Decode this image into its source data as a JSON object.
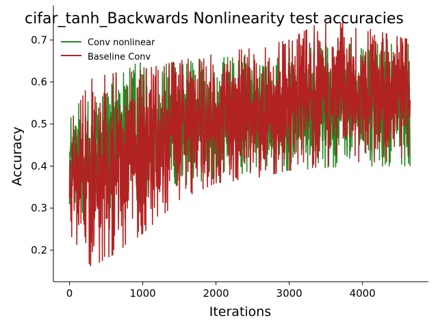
{
  "chart_data": {
    "type": "line",
    "title": "cifar_tanh_Backwards Nonlinearity test accuracies",
    "xlabel": "Iterations",
    "ylabel": "Accuracy",
    "xlim": [
      -220,
      4900
    ],
    "ylim": [
      0.125,
      0.782
    ],
    "x_ticks": [
      0,
      1000,
      2000,
      3000,
      4000
    ],
    "y_ticks": [
      0.2,
      0.3,
      0.4,
      0.5,
      0.6,
      0.7
    ],
    "x_tick_labels": [
      "0",
      "1000",
      "2000",
      "3000",
      "4000"
    ],
    "y_tick_labels": [
      "0.2",
      "0.3",
      "0.4",
      "0.5",
      "0.6",
      "0.7"
    ],
    "grid": false,
    "legend_position": "upper-left",
    "series": [
      {
        "name": "Conv nonlinear",
        "color": "#228B22",
        "x_start": 0,
        "x_end": 4650,
        "envelope": [
          {
            "x": 0,
            "lo": 0.3,
            "hi": 0.53
          },
          {
            "x": 200,
            "lo": 0.27,
            "hi": 0.56
          },
          {
            "x": 500,
            "lo": 0.28,
            "hi": 0.6
          },
          {
            "x": 800,
            "lo": 0.31,
            "hi": 0.65
          },
          {
            "x": 1200,
            "lo": 0.34,
            "hi": 0.64
          },
          {
            "x": 1700,
            "lo": 0.36,
            "hi": 0.65
          },
          {
            "x": 2200,
            "lo": 0.38,
            "hi": 0.66
          },
          {
            "x": 3000,
            "lo": 0.39,
            "hi": 0.68
          },
          {
            "x": 3800,
            "lo": 0.4,
            "hi": 0.69
          },
          {
            "x": 4650,
            "lo": 0.4,
            "hi": 0.69
          }
        ]
      },
      {
        "name": "Baseline Conv",
        "color": "#B22222",
        "x_start": 0,
        "x_end": 4650,
        "envelope": [
          {
            "x": 0,
            "lo": 0.24,
            "hi": 0.5
          },
          {
            "x": 300,
            "lo": 0.16,
            "hi": 0.61
          },
          {
            "x": 600,
            "lo": 0.19,
            "hi": 0.62
          },
          {
            "x": 1000,
            "lo": 0.24,
            "hi": 0.63
          },
          {
            "x": 1500,
            "lo": 0.32,
            "hi": 0.65
          },
          {
            "x": 2000,
            "lo": 0.36,
            "hi": 0.67
          },
          {
            "x": 2500,
            "lo": 0.37,
            "hi": 0.68
          },
          {
            "x": 3000,
            "lo": 0.39,
            "hi": 0.7
          },
          {
            "x": 3500,
            "lo": 0.4,
            "hi": 0.75
          },
          {
            "x": 4000,
            "lo": 0.41,
            "hi": 0.73
          },
          {
            "x": 4650,
            "lo": 0.41,
            "hi": 0.7
          }
        ]
      }
    ]
  }
}
